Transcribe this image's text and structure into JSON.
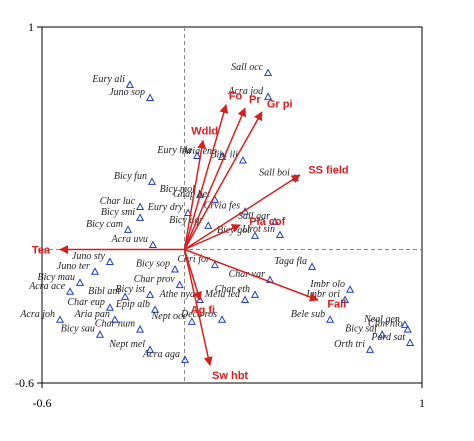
{
  "chart_data": {
    "type": "biplot",
    "xlim": [
      -0.6,
      1
    ],
    "ylim": [
      -0.6,
      1
    ],
    "xticks": [
      -0.6,
      1
    ],
    "yticks": [
      -0.6,
      1
    ],
    "species_color": "#1f3fbf",
    "vector_color": "#d62020",
    "labels": [
      "Sall occ",
      "Acra jod",
      "Eury ali",
      "Juno sop",
      "Aria eno",
      "Eury hia",
      "Bibl ili",
      "Sall boi",
      "Bicy fun",
      "Bicy mol",
      "Gnap bet",
      "Char luc",
      "Eury dry",
      "Bicy smi",
      "Crvia fes",
      "Sall gar",
      "Bicy cam",
      "Bicy agr",
      "Bicy gol",
      "Urot sin",
      "Acra uvu",
      "Juno sty",
      "Juno ter",
      "Bicy mau",
      "Acra ace",
      "Bibl ant",
      "Bicy ist",
      "Char eup",
      "Epip alb",
      "Acra joh",
      "Aria pan",
      "Char num",
      "Bicy sau",
      "Nept mel",
      "Acra aga",
      "Char prov",
      "Bicy sop",
      "Athe nya",
      "Nept occ",
      "Deca ros",
      "Mela led",
      "Chri for",
      "Char var",
      "Char eth",
      "Taga fla",
      "Imbr olo",
      "Imbr ori",
      "Bele sub",
      "Bicy saf",
      "Orth tri",
      "Neal gen",
      "Clim nio",
      "Pard sat"
    ],
    "x": [
      0.352,
      0.352,
      -0.23,
      -0.145,
      0.158,
      0.053,
      0.246,
      0.465,
      -0.137,
      0.065,
      0.128,
      -0.187,
      0.015,
      -0.187,
      0.255,
      0.381,
      -0.238,
      0.1,
      0.297,
      0.402,
      -0.133,
      -0.314,
      -0.377,
      -0.44,
      -0.482,
      -0.25,
      -0.145,
      -0.314,
      -0.124,
      -0.524,
      -0.293,
      -0.187,
      -0.356,
      -0.145,
      0.002,
      -0.02,
      -0.04,
      0.065,
      0.031,
      0.158,
      0.255,
      0.128,
      0.36,
      0.297,
      0.537,
      0.697,
      0.676,
      0.613,
      0.832,
      0.781,
      0.928,
      0.94,
      0.95
    ],
    "values": [
      0.793,
      0.686,
      0.74,
      0.681,
      0.416,
      0.42,
      0.4,
      0.32,
      0.304,
      0.245,
      0.223,
      0.191,
      0.164,
      0.142,
      0.17,
      0.124,
      0.088,
      0.106,
      0.061,
      0.065,
      0.02,
      -0.056,
      -0.1,
      -0.15,
      -0.19,
      -0.213,
      -0.204,
      -0.262,
      -0.271,
      -0.316,
      -0.316,
      -0.36,
      -0.383,
      -0.451,
      -0.496,
      -0.16,
      -0.09,
      -0.227,
      -0.325,
      -0.316,
      -0.227,
      -0.07,
      -0.137,
      -0.204,
      -0.078,
      -0.181,
      -0.227,
      -0.316,
      -0.383,
      -0.451,
      -0.339,
      -0.36,
      -0.42
    ],
    "vectors": {
      "labels": [
        "Tea",
        "Fo",
        "Pr",
        "Gr pi",
        "Wdld",
        "SS field",
        "Pla cof",
        "Fall",
        "Ag fi",
        "Sw hbt"
      ],
      "x": [
        -0.524,
        0.175,
        0.255,
        0.326,
        0.078,
        0.486,
        0.234,
        0.562,
        0.065,
        0.107
      ],
      "y": [
        0,
        0.65,
        0.635,
        0.618,
        0.49,
        0.335,
        0.11,
        -0.227,
        -0.227,
        -0.52
      ]
    }
  }
}
